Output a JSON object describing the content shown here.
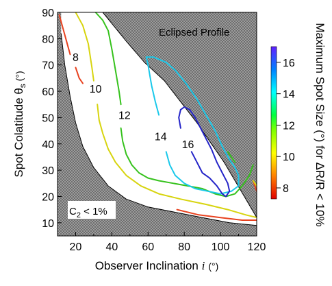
{
  "chart_data": {
    "type": "contour",
    "xlabel": "Observer Inclination i (°)",
    "xlabel_parts": {
      "text": "Observer Inclination ",
      "italic": "i",
      "unit": "(°)"
    },
    "ylabel": "Spot Colatitude θs (°)",
    "ylabel_parts": {
      "text": "Spot Colatitude θ",
      "sub": "s",
      "unit": " (°)"
    },
    "xlim": [
      10,
      120
    ],
    "ylim": [
      5,
      90
    ],
    "xticks": [
      20,
      40,
      60,
      80,
      100,
      120
    ],
    "yticks": [
      10,
      20,
      30,
      40,
      50,
      60,
      70,
      80,
      90
    ],
    "grid": false,
    "colorbar": {
      "label": "Maximum Spot Size (°) for ΔR/R < 10%",
      "range": [
        7.3,
        17.0
      ],
      "ticks": [
        8,
        10,
        12,
        14,
        16
      ]
    },
    "region_labels": {
      "eclipsed": "Eclipsed Profile",
      "c2": {
        "main": "C",
        "sub": "2",
        "rest": " < 1%"
      }
    },
    "shaded_regions": {
      "eclipsed_boundary": [
        [
          35,
          90
        ],
        [
          48,
          79
        ],
        [
          58,
          71
        ],
        [
          69,
          64
        ],
        [
          78,
          56
        ],
        [
          87,
          48
        ],
        [
          95,
          40
        ],
        [
          102,
          33
        ],
        [
          108,
          26
        ],
        [
          114,
          19
        ],
        [
          120,
          12
        ]
      ],
      "c2_boundary": [
        [
          12,
          82
        ],
        [
          14,
          70
        ],
        [
          17,
          58
        ],
        [
          20,
          48
        ],
        [
          24,
          39
        ],
        [
          30,
          31
        ],
        [
          38,
          24
        ],
        [
          48,
          19
        ],
        [
          60,
          16
        ],
        [
          75,
          14
        ],
        [
          90,
          12
        ],
        [
          105,
          10
        ],
        [
          120,
          9
        ]
      ]
    },
    "contours": [
      {
        "level": 8,
        "color": "#e8421f",
        "label": "8",
        "label_at": [
          20,
          73
        ],
        "segments": [
          [
            [
              11,
              89
            ],
            [
              13,
              84
            ],
            [
              15,
              79
            ],
            [
              17,
              74
            ]
          ],
          [
            [
              20,
              69
            ],
            [
              22,
              65
            ],
            [
              24,
              63
            ]
          ],
          [
            [
              76,
              15
            ],
            [
              88,
              13
            ],
            [
              100,
              12
            ],
            [
              112,
              11
            ],
            [
              120,
              11
            ]
          ],
          [
            [
              118,
              26
            ],
            [
              120,
              22
            ]
          ]
        ]
      },
      {
        "level": 10,
        "color": "#d7d40e",
        "label": "10",
        "label_at": [
          31,
          61
        ],
        "segments": [
          [
            [
              20,
              90
            ],
            [
              24,
              85
            ],
            [
              27,
              78
            ],
            [
              29,
              69
            ],
            [
              30,
              64
            ]
          ],
          [
            [
              32,
              55
            ],
            [
              33,
              49
            ],
            [
              35,
              44
            ],
            [
              38,
              38
            ],
            [
              42,
              33
            ],
            [
              48,
              28
            ],
            [
              56,
              24
            ],
            [
              66,
              21
            ],
            [
              78,
              19
            ],
            [
              92,
              17
            ],
            [
              104,
              15
            ],
            [
              114,
              13
            ],
            [
              120,
              12
            ]
          ],
          [
            [
              118,
              26
            ],
            [
              120,
              24
            ]
          ]
        ]
      },
      {
        "level": 12,
        "color": "#36c21d",
        "label": "12",
        "label_at": [
          47,
          51
        ],
        "segments": [
          [
            [
              31,
              90
            ],
            [
              35,
              87
            ],
            [
              38,
              83
            ],
            [
              40,
              76
            ],
            [
              42,
              68
            ],
            [
              44,
              60
            ],
            [
              45,
              55
            ]
          ],
          [
            [
              45,
              46
            ],
            [
              46,
              41
            ],
            [
              48,
              36
            ],
            [
              51,
              32
            ],
            [
              55,
              29
            ],
            [
              60,
              27
            ],
            [
              66,
              26
            ],
            [
              74,
              25
            ],
            [
              82,
              24
            ],
            [
              90,
              23
            ],
            [
              97,
              21
            ],
            [
              103,
              20
            ],
            [
              108,
              21
            ],
            [
              112,
              24
            ],
            [
              116,
              28
            ],
            [
              118,
              32
            ]
          ],
          [
            [
              108,
              33
            ],
            [
              104,
              37
            ]
          ]
        ]
      },
      {
        "level": 14,
        "color": "#19c8ea",
        "label": "14",
        "label_at": [
          67,
          43
        ],
        "segments": [
          [
            [
              60,
              70
            ],
            [
              59,
              73
            ],
            [
              63,
              73
            ],
            [
              70,
              71
            ],
            [
              75,
              68
            ],
            [
              81,
              63
            ],
            [
              87,
              57
            ],
            [
              92,
              51
            ],
            [
              97,
              45
            ],
            [
              101,
              39
            ],
            [
              105,
              34
            ],
            [
              108,
              31
            ],
            [
              110,
              28
            ],
            [
              110,
              24
            ],
            [
              106,
              22
            ],
            [
              100,
              21
            ],
            [
              93,
              22
            ],
            [
              86,
              23
            ],
            [
              80,
              25
            ],
            [
              75,
              28
            ],
            [
              72,
              32
            ],
            [
              70,
              37
            ]
          ],
          [
            [
              66,
              51
            ],
            [
              64,
              56
            ],
            [
              62,
              62
            ],
            [
              61,
              66
            ],
            [
              60,
              70
            ]
          ]
        ]
      },
      {
        "level": 16,
        "color": "#2424c8",
        "label": "16",
        "label_at": [
          82,
          40
        ],
        "segments": [
          [
            [
              78,
              53
            ],
            [
              80,
              54
            ],
            [
              83,
              53
            ],
            [
              86,
              50
            ],
            [
              89,
              46
            ],
            [
              92,
              42
            ],
            [
              95,
              38
            ],
            [
              98,
              33
            ],
            [
              101,
              29
            ],
            [
              104,
              25
            ],
            [
              105,
              22
            ],
            [
              103,
              20
            ],
            [
              101,
              21
            ],
            [
              98,
              24
            ],
            [
              94,
              27
            ],
            [
              90,
              29
            ],
            [
              87,
              33
            ],
            [
              84,
              37
            ]
          ],
          [
            [
              78,
              46
            ],
            [
              77,
              50
            ],
            [
              78,
              53
            ]
          ]
        ]
      }
    ]
  }
}
